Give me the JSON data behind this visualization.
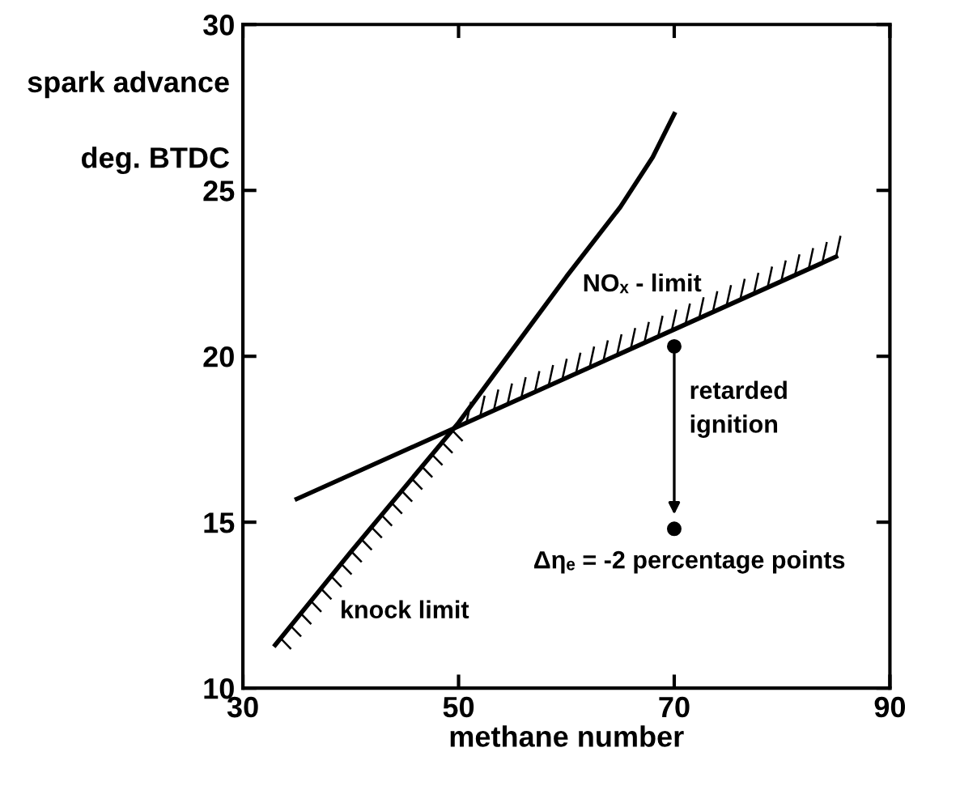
{
  "chart_data": {
    "type": "line",
    "xlabel": "methane number",
    "ylabel": "spark advance\n\ndeg. BTDC",
    "xlim": [
      30,
      90
    ],
    "ylim": [
      10,
      30
    ],
    "xticks": [
      30,
      50,
      70,
      90
    ],
    "yticks": [
      10,
      15,
      20,
      25,
      30
    ],
    "grid": false,
    "legend": false,
    "marker": "none",
    "line_style": "solid",
    "series": [
      {
        "color": "#000000",
        "x": [
          33,
          40,
          50,
          55,
          60,
          65,
          68,
          70
        ],
        "values": [
          11.3,
          14.1,
          18,
          20.2,
          22.4,
          24.5,
          26.0,
          27.3
        ]
      },
      {
        "color": "#000000",
        "x": [
          35,
          85
        ],
        "values": [
          15.7,
          23.0
        ]
      },
      {
        "type": "scatter",
        "marker": "circle",
        "color": "#000000",
        "x": [
          70,
          70
        ],
        "values": [
          20.3,
          14.8
        ]
      }
    ],
    "annotations": [
      "knock limit",
      "NOₓ - limit",
      "retarded\nignition",
      "Δηₑ = -2 percentage points"
    ]
  }
}
